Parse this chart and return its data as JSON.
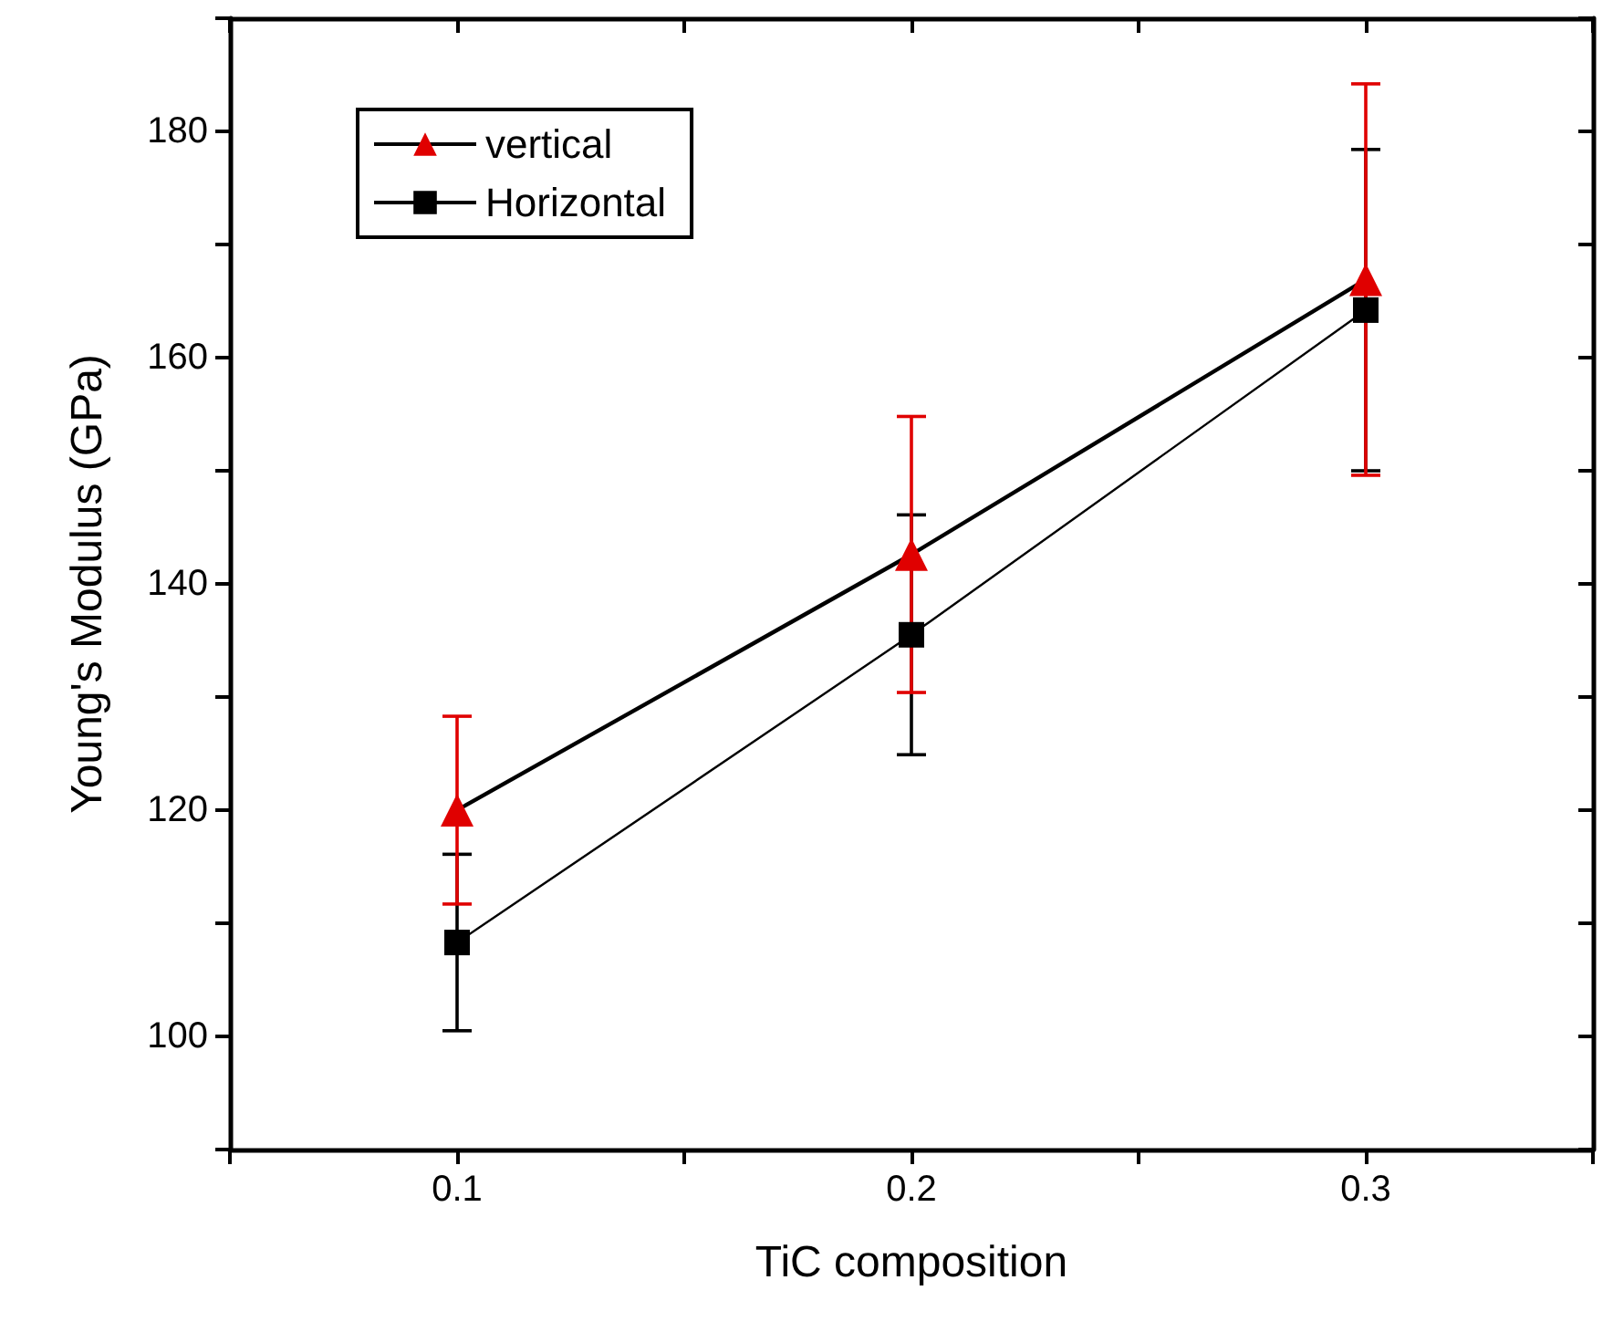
{
  "chart_data": {
    "type": "line",
    "xlabel": "TiC composition",
    "ylabel": "Young's Modulus (GPa)",
    "x": [
      0.1,
      0.2,
      0.3
    ],
    "series": [
      {
        "name": "vertical",
        "color": "#e00000",
        "marker": "triangle",
        "values": [
          120,
          142.6,
          166.9
        ],
        "errors": [
          8.3,
          12.2,
          17.3
        ]
      },
      {
        "name": "Horizontal",
        "color": "#000000",
        "marker": "square",
        "values": [
          108.3,
          135.5,
          164.2
        ],
        "errors": [
          7.8,
          10.6,
          14.2
        ]
      }
    ],
    "xlim": [
      0.05,
      0.35
    ],
    "xticks": [
      {
        "value": 0.05,
        "label": null
      },
      0.1,
      {
        "value": 0.15,
        "label": null
      },
      0.2,
      {
        "value": 0.25,
        "label": null
      },
      0.3,
      {
        "value": 0.35,
        "label": null
      }
    ],
    "ylim": [
      90,
      190
    ],
    "yticks": [
      {
        "value": 90,
        "label": null
      },
      100,
      {
        "value": 110,
        "label": null
      },
      120,
      {
        "value": 130,
        "label": null
      },
      140,
      {
        "value": 150,
        "label": null
      },
      160,
      {
        "value": 170,
        "label": null
      },
      180,
      {
        "value": 190,
        "label": null
      }
    ],
    "grid": false,
    "legend": "top left",
    "line_style": "solid"
  }
}
